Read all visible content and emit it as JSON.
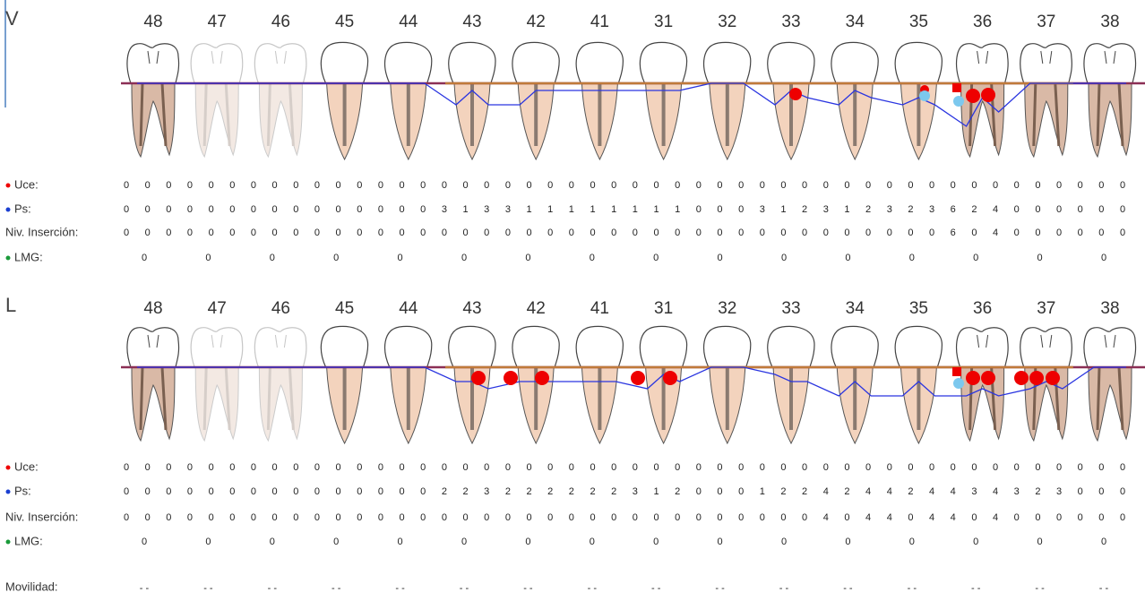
{
  "sections": [
    {
      "label": "V",
      "teeth": [
        "48",
        "47",
        "46",
        "45",
        "44",
        "43",
        "42",
        "41",
        "31",
        "32",
        "33",
        "34",
        "35",
        "36",
        "37",
        "38"
      ],
      "uce": {
        "label": "Uce:",
        "values": [
          0,
          0,
          0,
          0,
          0,
          0,
          0,
          0,
          0,
          0,
          0,
          0,
          0,
          0,
          0,
          0,
          0,
          0,
          0,
          0,
          0,
          0,
          0,
          0,
          0,
          0,
          0,
          0,
          0,
          0,
          0,
          0,
          0,
          0,
          0,
          0,
          0,
          0,
          0,
          0,
          0,
          0,
          0,
          0,
          0,
          0,
          0,
          0
        ]
      },
      "ps": {
        "label": "Ps:",
        "values": [
          0,
          0,
          0,
          0,
          0,
          0,
          0,
          0,
          0,
          0,
          0,
          0,
          0,
          0,
          0,
          3,
          1,
          3,
          3,
          1,
          1,
          1,
          1,
          1,
          1,
          1,
          1,
          0,
          0,
          0,
          3,
          1,
          2,
          3,
          1,
          2,
          3,
          2,
          3,
          6,
          2,
          4,
          0,
          0,
          0,
          0,
          0,
          0
        ]
      },
      "niv": {
        "label": "Niv. Inserción:",
        "values": [
          0,
          0,
          0,
          0,
          0,
          0,
          0,
          0,
          0,
          0,
          0,
          0,
          0,
          0,
          0,
          0,
          0,
          0,
          0,
          0,
          0,
          0,
          0,
          0,
          0,
          0,
          0,
          0,
          0,
          0,
          0,
          0,
          0,
          0,
          0,
          0,
          0,
          0,
          0,
          6,
          0,
          4,
          0,
          0,
          0,
          0,
          0,
          0
        ]
      },
      "lmg": {
        "label": "LMG:",
        "values": [
          0,
          0,
          0,
          0,
          0,
          0,
          0,
          0,
          0,
          0,
          0,
          0,
          0,
          0,
          0,
          0
        ]
      }
    },
    {
      "label": "L",
      "teeth": [
        "48",
        "47",
        "46",
        "45",
        "44",
        "43",
        "42",
        "41",
        "31",
        "32",
        "33",
        "34",
        "35",
        "36",
        "37",
        "38"
      ],
      "uce": {
        "label": "Uce:",
        "values": [
          0,
          0,
          0,
          0,
          0,
          0,
          0,
          0,
          0,
          0,
          0,
          0,
          0,
          0,
          0,
          0,
          0,
          0,
          0,
          0,
          0,
          0,
          0,
          0,
          0,
          0,
          0,
          0,
          0,
          0,
          0,
          0,
          0,
          0,
          0,
          0,
          0,
          0,
          0,
          0,
          0,
          0,
          0,
          0,
          0,
          0,
          0,
          0
        ]
      },
      "ps": {
        "label": "Ps:",
        "values": [
          0,
          0,
          0,
          0,
          0,
          0,
          0,
          0,
          0,
          0,
          0,
          0,
          0,
          0,
          0,
          2,
          2,
          3,
          2,
          2,
          2,
          2,
          2,
          2,
          3,
          1,
          2,
          0,
          0,
          0,
          1,
          2,
          2,
          4,
          2,
          4,
          4,
          2,
          4,
          4,
          3,
          4,
          3,
          2,
          3,
          0,
          0,
          0
        ]
      },
      "niv": {
        "label": "Niv. Inserción:",
        "values": [
          0,
          0,
          0,
          0,
          0,
          0,
          0,
          0,
          0,
          0,
          0,
          0,
          0,
          0,
          0,
          0,
          0,
          0,
          0,
          0,
          0,
          0,
          0,
          0,
          0,
          0,
          0,
          0,
          0,
          0,
          0,
          0,
          0,
          4,
          0,
          4,
          4,
          0,
          4,
          4,
          0,
          4,
          0,
          0,
          0,
          0,
          0,
          0
        ]
      },
      "lmg": {
        "label": "LMG:",
        "values": [
          0,
          0,
          0,
          0,
          0,
          0,
          0,
          0,
          0,
          0,
          0,
          0,
          0,
          0,
          0,
          0
        ]
      }
    }
  ],
  "mobility": {
    "label": "Movilidad:",
    "values": [
      "- -",
      "- -",
      "- -",
      "- -",
      "- -",
      "- -",
      "- -",
      "- -",
      "- -",
      "- -",
      "- -",
      "- -",
      "- -",
      "- -",
      "- -",
      "- -"
    ]
  }
}
